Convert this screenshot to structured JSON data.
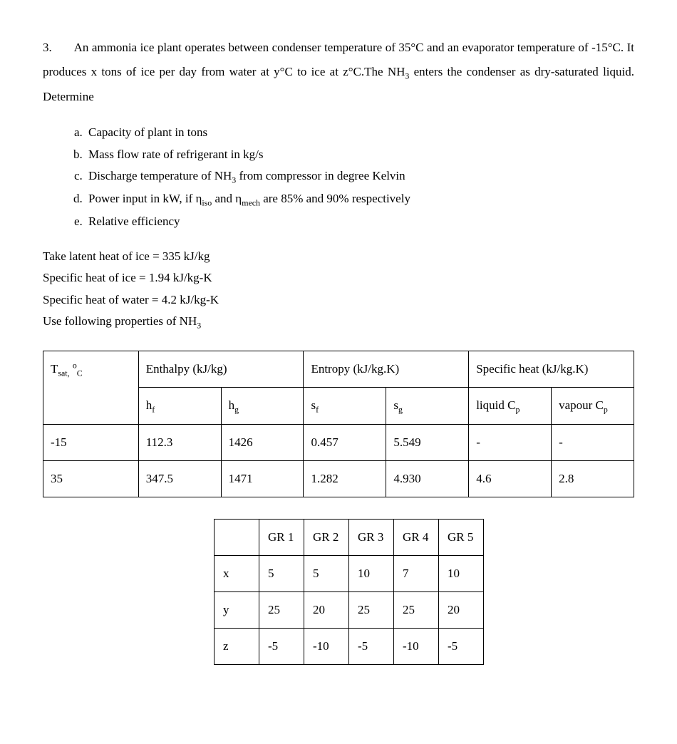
{
  "question": {
    "number": "3.",
    "text_html": "An ammonia ice plant operates between condenser temperature of 35&deg;C and an evaporator temperature of -15&deg;C. It produces x tons of ice per day from water at y&deg;C to ice at z&deg;C.The NH<sub>3</sub> enters the condenser as dry-saturated liquid.  Determine"
  },
  "parts": [
    "Capacity of plant in tons",
    "Mass flow rate of refrigerant in kg/s",
    "Discharge temperature of  NH<sub>3</sub> from compressor in degree Kelvin",
    "Power input in kW, if &eta;<sub>iso</sub> and &eta;<sub>mech</sub> are 85% and 90% respectively",
    "Relative efficiency"
  ],
  "given": [
    "Take latent heat of ice = 335 kJ/kg",
    "Specific heat of ice = 1.94 kJ/kg-K",
    "Specific heat of water = 4.2 kJ/kg-K",
    "Use following properties of NH<sub>3</sub>"
  ],
  "props_table": {
    "header_row1": {
      "tsat": "T<sub>sat,</sub> <sup>o</sup><sub>C</sub>",
      "enthalpy": "Enthalpy (kJ/kg)",
      "entropy": "Entropy (kJ/kg.K)",
      "specheat": "Specific heat (kJ/kg.K)"
    },
    "header_row2": {
      "hf": "h<sub>f</sub>",
      "hg": "h<sub>g</sub>",
      "sf": "s<sub>f</sub>",
      "sg": "s<sub>g</sub>",
      "liquid": "liquid C<sub>p</sub>",
      "vapour": "vapour C<sub>p</sub>"
    },
    "rows": [
      {
        "t": "-15",
        "hf": "112.3",
        "hg": "1426",
        "sf": "0.457",
        "sg": "5.549",
        "liquid": "-",
        "vapour": "-"
      },
      {
        "t": "35",
        "hf": "347.5",
        "hg": "1471",
        "sf": "1.282",
        "sg": "4.930",
        "liquid": "4.6",
        "vapour": "2.8"
      }
    ],
    "colwidths_pct": [
      15,
      13,
      13,
      13,
      13,
      13,
      13
    ]
  },
  "groups_table": {
    "headers": [
      "",
      "GR 1",
      "GR 2",
      "GR 3",
      "GR 4",
      "GR 5"
    ],
    "rows": [
      [
        "x",
        "5",
        "5",
        "10",
        "7",
        "10"
      ],
      [
        "y",
        "25",
        "20",
        "25",
        "25",
        "20"
      ],
      [
        "z",
        "-5",
        "-10",
        "-5",
        "-10",
        "-5"
      ]
    ]
  }
}
